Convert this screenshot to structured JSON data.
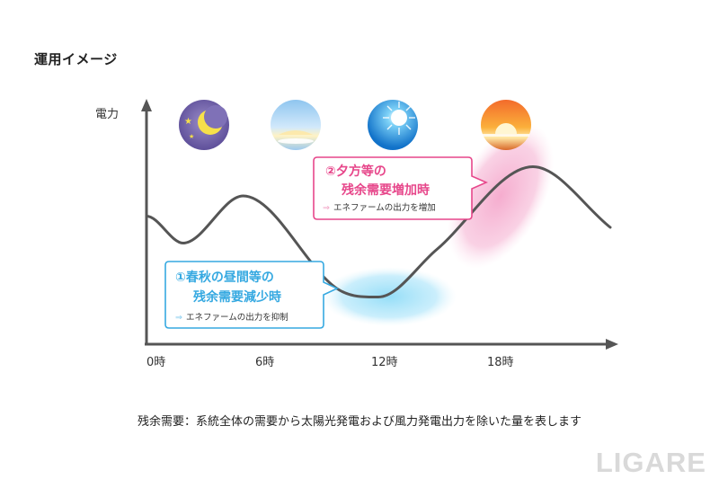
{
  "heading": "運用イメージ",
  "note": "残余需要：系統全体の需要から太陽光発電および風力発電出力を除いた量を表します",
  "watermark": "LIGARE",
  "chart_data": {
    "type": "line",
    "ylabel": "電力",
    "xlabel": "",
    "x_ticks": [
      "0時",
      "6時",
      "12時",
      "18時"
    ],
    "x_range": [
      0,
      24
    ],
    "series": [
      {
        "name": "残余需要",
        "x": [
          0,
          1.9,
          5,
          10,
          12,
          15,
          20,
          24
        ],
        "y": [
          0.57,
          0.45,
          0.66,
          0.24,
          0.21,
          0.42,
          0.79,
          0.52
        ]
      }
    ],
    "sky_icons": [
      "night-moon",
      "dawn",
      "midday-sun",
      "sunset"
    ],
    "annotations": [
      {
        "id": "surplus",
        "title_line1": "①春秋の昼間等の",
        "title_line2": "残余需要減少時",
        "sub": "エネファームの出力を抑制",
        "color": "#36a9e1"
      },
      {
        "id": "evening",
        "title_line1": "②夕方等の",
        "title_line2": "残余需要増加時",
        "sub": "エネファームの出力を増加",
        "color": "#e7478b"
      }
    ]
  }
}
